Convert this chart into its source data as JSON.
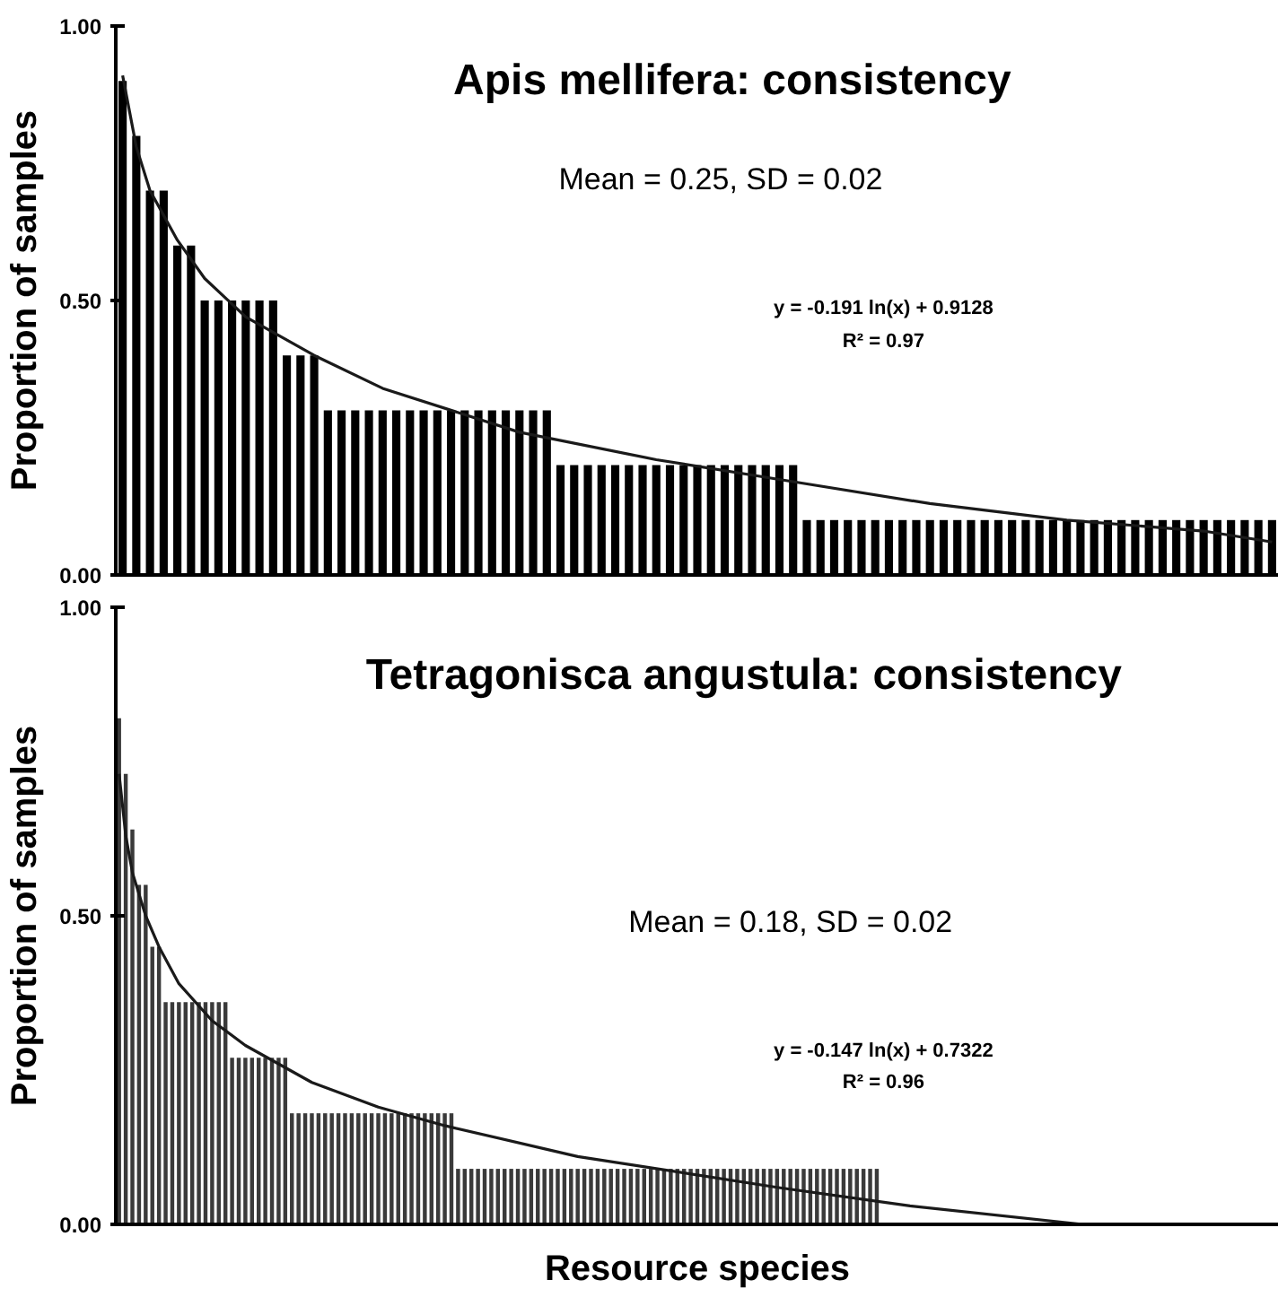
{
  "chart_data": [
    {
      "type": "bar",
      "title": "Apis mellifera: consistency",
      "ylabel": "Proportion of samples",
      "categories": [
        null,
        null,
        null,
        null,
        null,
        null,
        null,
        null,
        null,
        null,
        null,
        null,
        null,
        null,
        null,
        null,
        null,
        null,
        null,
        null,
        null,
        null,
        null,
        null,
        null,
        null,
        null,
        null,
        null,
        null,
        null,
        null,
        null,
        null,
        null,
        null,
        null,
        null,
        null,
        null,
        null,
        null,
        null,
        null,
        null,
        null,
        null,
        null,
        null,
        null,
        null,
        null,
        null,
        null,
        null,
        null,
        null,
        null,
        null,
        null,
        null,
        null,
        null,
        null,
        null,
        null,
        null,
        null,
        null,
        null,
        null,
        null,
        null,
        null,
        null,
        null,
        null,
        null,
        null,
        null,
        null,
        null,
        null,
        null,
        null
      ],
      "series": [
        {
          "color": "#000000",
          "values": [
            0.9,
            0.8,
            0.7,
            0.7,
            0.6,
            0.6,
            0.5,
            0.5,
            0.5,
            0.5,
            0.5,
            0.5,
            0.4,
            0.4,
            0.4,
            0.3,
            0.3,
            0.3,
            0.3,
            0.3,
            0.3,
            0.3,
            0.3,
            0.3,
            0.3,
            0.3,
            0.3,
            0.3,
            0.3,
            0.3,
            0.3,
            0.3,
            0.2,
            0.2,
            0.2,
            0.2,
            0.2,
            0.2,
            0.2,
            0.2,
            0.2,
            0.2,
            0.2,
            0.2,
            0.2,
            0.2,
            0.2,
            0.2,
            0.2,
            0.2,
            0.1,
            0.1,
            0.1,
            0.1,
            0.1,
            0.1,
            0.1,
            0.1,
            0.1,
            0.1,
            0.1,
            0.1,
            0.1,
            0.1,
            0.1,
            0.1,
            0.1,
            0.1,
            0.1,
            0.1,
            0.1,
            0.1,
            0.1,
            0.1,
            0.1,
            0.1,
            0.1,
            0.1,
            0.1,
            0.1,
            0.1,
            0.1,
            0.1,
            0.1,
            0.1
          ]
        },
        {
          "type": "line",
          "color": "#1a1a1a",
          "values": [
            0.91,
            0.78,
            0.7,
            null,
            0.61,
            null,
            0.54,
            null,
            null,
            0.47,
            null,
            null,
            null,
            null,
            0.4,
            null,
            null,
            null,
            null,
            0.34,
            null,
            null,
            null,
            null,
            null,
            null,
            null,
            null,
            null,
            0.26,
            null,
            null,
            null,
            null,
            null,
            null,
            null,
            null,
            null,
            0.21,
            null,
            null,
            null,
            null,
            null,
            null,
            null,
            null,
            null,
            0.17,
            null,
            null,
            null,
            null,
            null,
            null,
            null,
            null,
            null,
            0.13,
            null,
            null,
            null,
            null,
            null,
            null,
            null,
            null,
            null,
            0.1,
            null,
            null,
            null,
            null,
            null,
            null,
            null,
            null,
            null,
            0.08,
            null,
            null,
            null,
            null,
            0.06
          ]
        }
      ],
      "ylim": [
        0,
        1
      ],
      "yticks": [
        {
          "value": 0,
          "label": "0.00"
        },
        {
          "value": 0.5,
          "label": "0.50"
        },
        {
          "value": 1,
          "label": "1.00"
        }
      ],
      "tick_labels": "y",
      "grid": false,
      "annotations": [
        "Mean = 0.25, SD = 0.02",
        "y = -0.191 ln(x) + 0.9128",
        "R² = 0.97"
      ]
    },
    {
      "type": "bar",
      "title": "Tetragonisca angustula: consistency",
      "ylabel": "Proportion of samples",
      "xlabel": "Resource species",
      "categories": [
        null,
        null,
        null,
        null,
        null,
        null,
        null,
        null,
        null,
        null,
        null,
        null,
        null,
        null,
        null,
        null,
        null,
        null,
        null,
        null,
        null,
        null,
        null,
        null,
        null,
        null,
        null,
        null,
        null,
        null,
        null,
        null,
        null,
        null,
        null,
        null,
        null,
        null,
        null,
        null,
        null,
        null,
        null,
        null,
        null,
        null,
        null,
        null,
        null,
        null,
        null,
        null,
        null,
        null,
        null,
        null,
        null,
        null,
        null,
        null,
        null,
        null,
        null,
        null,
        null,
        null,
        null,
        null,
        null,
        null,
        null,
        null,
        null,
        null,
        null,
        null,
        null,
        null,
        null,
        null,
        null,
        null,
        null,
        null,
        null,
        null,
        null,
        null,
        null,
        null,
        null,
        null,
        null,
        null,
        null,
        null,
        null,
        null,
        null,
        null,
        null,
        null,
        null,
        null,
        null,
        null,
        null,
        null,
        null,
        null,
        null,
        null,
        null,
        null,
        null,
        null,
        null,
        null,
        null,
        null,
        null,
        null,
        null,
        null,
        null,
        null,
        null,
        null,
        null,
        null,
        null,
        null,
        null,
        null,
        null,
        null,
        null,
        null,
        null,
        null,
        null,
        null,
        null,
        null,
        null,
        null,
        null,
        null,
        null,
        null,
        null,
        null,
        null,
        null,
        null,
        null,
        null,
        null,
        null,
        null,
        null,
        null,
        null,
        null,
        null,
        null,
        null,
        null,
        null,
        null,
        null,
        null,
        null,
        null,
        null
      ],
      "series": [
        {
          "color": "#3a3a3a",
          "values": [
            0.82,
            0.73,
            0.64,
            0.55,
            0.55,
            0.45,
            0.45,
            0.36,
            0.36,
            0.36,
            0.36,
            0.36,
            0.36,
            0.36,
            0.36,
            0.36,
            0.36,
            0.27,
            0.27,
            0.27,
            0.27,
            0.27,
            0.27,
            0.27,
            0.27,
            0.27,
            0.18,
            0.18,
            0.18,
            0.18,
            0.18,
            0.18,
            0.18,
            0.18,
            0.18,
            0.18,
            0.18,
            0.18,
            0.18,
            0.18,
            0.18,
            0.18,
            0.18,
            0.18,
            0.18,
            0.18,
            0.18,
            0.18,
            0.18,
            0.18,
            0.18,
            0.09,
            0.09,
            0.09,
            0.09,
            0.09,
            0.09,
            0.09,
            0.09,
            0.09,
            0.09,
            0.09,
            0.09,
            0.09,
            0.09,
            0.09,
            0.09,
            0.09,
            0.09,
            0.09,
            0.09,
            0.09,
            0.09,
            0.09,
            0.09,
            0.09,
            0.09,
            0.09,
            0.09,
            0.09,
            0.09,
            0.09,
            0.09,
            0.09,
            0.09,
            0.09,
            0.09,
            0.09,
            0.09,
            0.09,
            0.09,
            0.09,
            0.09,
            0.09,
            0.09,
            0.09,
            0.09,
            0.09,
            0.09,
            0.09,
            0.09,
            0.09,
            0.09,
            0.09,
            0.09,
            0.09,
            0.09,
            0.09,
            0.09,
            0.09,
            0.09,
            0.09,
            0.09,
            0.09,
            0.09,
            null,
            null,
            null,
            null,
            null,
            null,
            null,
            null,
            null,
            null,
            null,
            null,
            null,
            null,
            null,
            null,
            null,
            null,
            null,
            null,
            null,
            null,
            null,
            null,
            null,
            null,
            null,
            null,
            null,
            null,
            null,
            null,
            null,
            null,
            null,
            null,
            null,
            null,
            null,
            null,
            null,
            null,
            null,
            null,
            null,
            null,
            null,
            null,
            null,
            null,
            null,
            null,
            null,
            null,
            null,
            null,
            null,
            null,
            null,
            null
          ]
        },
        {
          "type": "line",
          "color": "#1a1a1a",
          "values": [
            0.73,
            0.63,
            0.57,
            null,
            0.5,
            null,
            0.45,
            null,
            null,
            0.39,
            null,
            null,
            null,
            null,
            0.33,
            null,
            null,
            null,
            null,
            0.29,
            null,
            null,
            null,
            null,
            null,
            null,
            null,
            null,
            null,
            0.23,
            null,
            null,
            null,
            null,
            null,
            null,
            null,
            null,
            null,
            0.19,
            null,
            null,
            null,
            null,
            null,
            null,
            null,
            null,
            null,
            0.16,
            null,
            null,
            null,
            null,
            null,
            null,
            null,
            null,
            null,
            null,
            null,
            null,
            null,
            null,
            null,
            null,
            null,
            null,
            null,
            0.11,
            null,
            null,
            null,
            null,
            null,
            null,
            null,
            null,
            null,
            null,
            null,
            null,
            null,
            null,
            null,
            null,
            null,
            null,
            null,
            null,
            null,
            null,
            null,
            null,
            null,
            null,
            null,
            null,
            null,
            0.06,
            null,
            null,
            null,
            null,
            null,
            null,
            null,
            null,
            null,
            null,
            null,
            null,
            null,
            null,
            null,
            null,
            null,
            null,
            null,
            0.03,
            null,
            null,
            null,
            null,
            null,
            null,
            null,
            null,
            null,
            null,
            null,
            null,
            null,
            null,
            null,
            null,
            null,
            null,
            null,
            null,
            null,
            null,
            null,
            null,
            null,
            0.0,
            null,
            null,
            null,
            null,
            null,
            null,
            null,
            null,
            null,
            null,
            null,
            null,
            null,
            null,
            null,
            null,
            null,
            null,
            null,
            null,
            null,
            null,
            null,
            null,
            null,
            null,
            null,
            null,
            null
          ]
        }
      ],
      "ylim": [
        0,
        1
      ],
      "yticks": [
        {
          "value": 0,
          "label": "0.00"
        },
        {
          "value": 0.5,
          "label": "0.50"
        },
        {
          "value": 1,
          "label": "1.00"
        }
      ],
      "tick_labels": "y",
      "grid": false,
      "annotations": [
        "Mean = 0.18, SD = 0.02",
        "y = -0.147 ln(x) + 0.7322",
        "R² = 0.96"
      ]
    }
  ]
}
